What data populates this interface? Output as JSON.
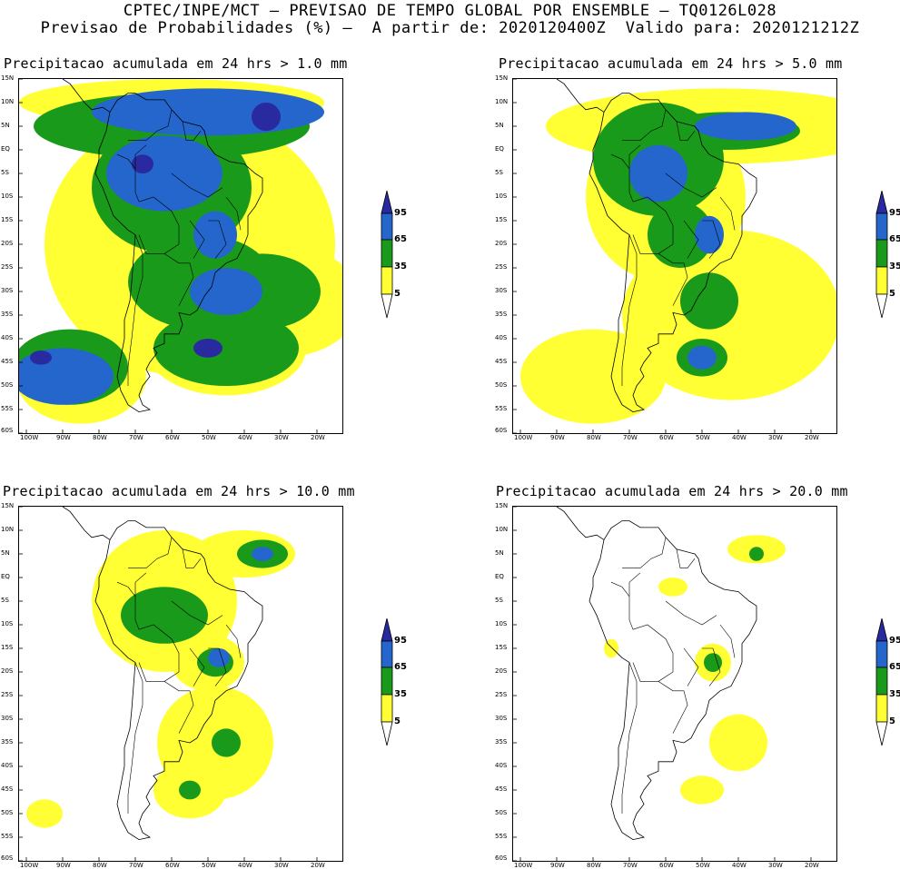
{
  "header": {
    "title_line1": "CPTEC/INPE/MCT – PREVISAO DE TEMPO GLOBAL POR ENSEMBLE – TQ0126L028",
    "title_line2": "Previsao de Probabilidades (%) –  A partir de: 2020120400Z  Valido para: 2020121212Z"
  },
  "panels": [
    {
      "title": "Precipitacao acumulada em 24 hrs > 1.0 mm",
      "threshold_mm": 1.0
    },
    {
      "title": "Precipitacao acumulada em 24 hrs > 5.0 mm",
      "threshold_mm": 5.0
    },
    {
      "title": "Precipitacao acumulada em 24 hrs > 10.0 mm",
      "threshold_mm": 10.0
    },
    {
      "title": "Precipitacao acumulada em 24 hrs > 20.0 mm",
      "threshold_mm": 20.0
    }
  ],
  "lat_labels": [
    "15N",
    "10N",
    "5N",
    "EQ",
    "5S",
    "10S",
    "15S",
    "20S",
    "25S",
    "30S",
    "35S",
    "40S",
    "45S",
    "50S",
    "55S",
    "60S"
  ],
  "lon_labels": [
    "100W",
    "90W",
    "80W",
    "70W",
    "60W",
    "50W",
    "40W",
    "30W",
    "20W"
  ],
  "legend": {
    "levels": [
      "95",
      "65",
      "35",
      "5"
    ],
    "colors": {
      "c95": "#2a2aa0",
      "c65": "#2466cc",
      "c35": "#1a9a1a",
      "c5": "#ffff33"
    }
  },
  "colors": {
    "map_border": "#000000",
    "coast": "#000000"
  }
}
